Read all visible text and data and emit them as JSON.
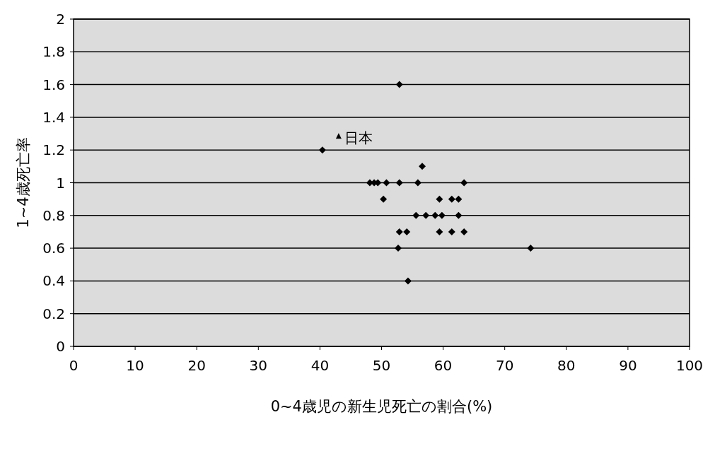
{
  "chart_data": {
    "type": "scatter",
    "xlabel": "0~4歳児の新生児死亡の割合(%)",
    "ylabel": "1~4歳死亡率",
    "x": [
      52.9,
      40.4,
      56.6,
      48.1,
      48.8,
      49.4,
      50.8,
      52.9,
      55.9,
      63.4,
      50.3,
      59.4,
      61.4,
      62.5,
      55.6,
      57.2,
      58.7,
      59.8,
      62.5,
      52.9,
      54.1,
      59.4,
      61.4,
      63.4,
      52.7,
      74.2,
      54.3
    ],
    "series": [
      {
        "color": "#000000",
        "values": [
          1.6,
          1.2,
          1.1,
          1.0,
          1.0,
          1.0,
          1.0,
          1.0,
          1.0,
          1.0,
          0.9,
          0.9,
          0.9,
          0.9,
          0.8,
          0.8,
          0.8,
          0.8,
          0.8,
          0.7,
          0.7,
          0.7,
          0.7,
          0.7,
          0.6,
          0.6,
          0.4
        ]
      }
    ],
    "xlim": [
      0,
      100
    ],
    "xticks": [
      0,
      10,
      20,
      30,
      40,
      50,
      60,
      70,
      80,
      90,
      100
    ],
    "ylim": [
      0,
      2
    ],
    "yticks": [
      0,
      0.2,
      0.4,
      0.6,
      0.8,
      1,
      1.2,
      1.4,
      1.6,
      1.8,
      2
    ],
    "grid": "y",
    "marker": "diamond",
    "annotations": [
      {
        "text": "日本",
        "x": 40.4,
        "y": 1.2
      }
    ]
  }
}
